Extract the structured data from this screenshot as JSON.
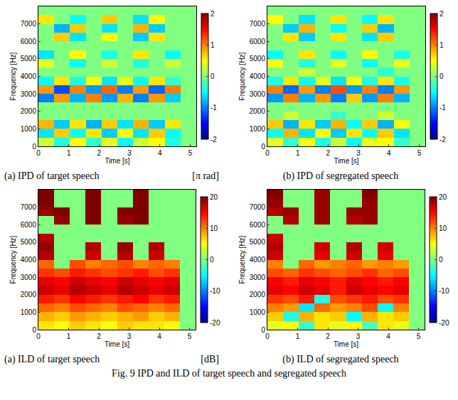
{
  "chart_data": [
    {
      "type": "heatmap",
      "caption": "(a) IPD of target speech",
      "units": "[π rad]",
      "xlabel": "Time [s]",
      "ylabel": "Frequency [Hz]",
      "x": [
        0.26,
        0.78,
        1.3,
        1.82,
        2.34,
        2.86,
        3.38,
        3.9,
        4.42,
        4.94
      ],
      "y": [
        250,
        750,
        1250,
        1750,
        2250,
        2750,
        3250,
        3750,
        4250,
        4750,
        5250,
        5750,
        6250,
        6750,
        7250,
        7750
      ],
      "z": [
        [
          0.3,
          -0.4,
          0.5,
          -0.3,
          0.4,
          -0.5,
          0.3,
          0.5,
          -0.4,
          0
        ],
        [
          -0.6,
          0.7,
          -0.5,
          0.6,
          -0.7,
          0.5,
          -0.6,
          0.7,
          -0.5,
          0
        ],
        [
          0.8,
          -0.7,
          0.6,
          -0.8,
          0.7,
          -0.6,
          0.8,
          -0.7,
          0.6,
          0
        ],
        [
          0,
          0,
          0,
          0,
          0,
          0,
          0,
          0,
          0,
          0
        ],
        [
          0,
          0,
          0,
          0,
          0,
          0,
          0,
          0,
          0,
          0
        ],
        [
          -1.0,
          0.9,
          -0.8,
          1.0,
          -0.9,
          0.8,
          -1.0,
          0.9,
          -0.7,
          0
        ],
        [
          0.9,
          -1.2,
          1.0,
          -0.9,
          1.1,
          -1.0,
          0.9,
          -1.1,
          1.0,
          0
        ],
        [
          -0.5,
          0.6,
          -0.4,
          0.5,
          -0.6,
          0.4,
          -0.5,
          0.6,
          -0.3,
          0
        ],
        [
          0,
          0,
          0,
          0,
          0,
          0,
          0,
          0,
          0,
          0
        ],
        [
          0.4,
          0,
          -0.5,
          0,
          0.3,
          0,
          -0.4,
          0,
          0.3,
          0
        ],
        [
          -0.6,
          0,
          0.5,
          0,
          -0.4,
          0,
          0.6,
          0,
          -0.5,
          0
        ],
        [
          0,
          0,
          0,
          0,
          0,
          0,
          0,
          0,
          0,
          0
        ],
        [
          0,
          0.7,
          -0.6,
          0,
          0.5,
          0,
          -0.7,
          0.6,
          0,
          0
        ],
        [
          0,
          -0.8,
          0.7,
          0,
          -0.6,
          0,
          0.8,
          -0.7,
          0,
          0
        ],
        [
          0.6,
          0,
          -0.5,
          0,
          0.7,
          0,
          -0.6,
          0.5,
          0,
          0
        ],
        [
          0,
          0,
          0,
          0,
          0,
          0,
          0,
          0,
          0,
          0
        ]
      ],
      "xlim": [
        0,
        5.2
      ],
      "ylim": [
        0,
        8000
      ],
      "xticks": [
        0,
        1,
        2,
        3,
        4,
        5
      ],
      "yticks": [
        0,
        1000,
        2000,
        3000,
        4000,
        5000,
        6000,
        7000
      ],
      "colorbar_range": [
        -2,
        2
      ],
      "colorbar_ticks": [
        -2,
        -1,
        0,
        1,
        2
      ]
    },
    {
      "type": "heatmap",
      "caption": "(b) IPD of segregated speech",
      "xlabel": "Time [s]",
      "ylabel": "Frequency [Hz]",
      "x": [
        0.26,
        0.78,
        1.3,
        1.82,
        2.34,
        2.86,
        3.38,
        3.9,
        4.42,
        4.94
      ],
      "y": [
        250,
        750,
        1250,
        1750,
        2250,
        2750,
        3250,
        3750,
        4250,
        4750,
        5250,
        5750,
        6250,
        6750,
        7250,
        7750
      ],
      "z": [
        [
          0.4,
          -0.3,
          0.5,
          -0.4,
          0.3,
          -0.5,
          0.4,
          0.5,
          -0.3,
          0
        ],
        [
          -0.5,
          0.8,
          -0.6,
          0.5,
          -0.7,
          0.6,
          -0.5,
          0.7,
          -0.6,
          0
        ],
        [
          0.7,
          -0.8,
          0.6,
          -0.7,
          0.8,
          -0.5,
          0.7,
          -0.8,
          0.5,
          0
        ],
        [
          0,
          0.3,
          0,
          0,
          -0.3,
          0,
          0,
          0.3,
          0,
          0
        ],
        [
          0,
          0,
          0,
          0,
          0,
          0,
          0,
          0,
          0,
          0
        ],
        [
          -0.9,
          1.0,
          -0.8,
          0.9,
          -1.0,
          0.7,
          -0.9,
          1.0,
          -0.8,
          0
        ],
        [
          1.0,
          -1.1,
          0.9,
          -1.0,
          1.2,
          -0.9,
          1.0,
          -1.0,
          0.9,
          0
        ],
        [
          -0.4,
          0.6,
          -0.5,
          0.4,
          -0.6,
          0.5,
          -0.4,
          0.6,
          -0.4,
          0
        ],
        [
          0,
          0,
          0.3,
          0,
          0,
          0,
          0,
          -0.3,
          0,
          0
        ],
        [
          0.5,
          0,
          -0.4,
          0,
          0.4,
          0,
          -0.5,
          0,
          0.4,
          0
        ],
        [
          -0.5,
          0,
          0.6,
          0,
          -0.5,
          0,
          0.5,
          0,
          -0.4,
          0
        ],
        [
          0,
          0,
          0,
          0,
          0,
          0,
          0,
          0,
          0,
          0
        ],
        [
          0,
          0.6,
          -0.7,
          0,
          0.6,
          0,
          -0.6,
          0.7,
          0,
          0
        ],
        [
          0,
          -0.7,
          0.8,
          0,
          -0.5,
          0,
          0.7,
          -0.8,
          0,
          0
        ],
        [
          0.5,
          0,
          -0.6,
          0,
          0.6,
          0,
          -0.5,
          0.6,
          0,
          0
        ],
        [
          0,
          0,
          0,
          0,
          0,
          0,
          0,
          0,
          0,
          0
        ]
      ],
      "xlim": [
        0,
        5.2
      ],
      "ylim": [
        0,
        8000
      ],
      "xticks": [
        0,
        1,
        2,
        3,
        4,
        5
      ],
      "yticks": [
        0,
        1000,
        2000,
        3000,
        4000,
        5000,
        6000,
        7000
      ],
      "colorbar_range": [
        -2,
        2
      ],
      "colorbar_ticks": [
        -2,
        -1,
        0,
        1,
        2
      ]
    },
    {
      "type": "heatmap",
      "caption": "(a) ILD of target speech",
      "units": "[dB]",
      "xlabel": "Time [s]",
      "ylabel": "Frequency [Hz]",
      "x": [
        0.26,
        0.78,
        1.3,
        1.82,
        2.34,
        2.86,
        3.38,
        3.9,
        4.42,
        4.94
      ],
      "y": [
        250,
        750,
        1250,
        1750,
        2250,
        2750,
        3250,
        3750,
        4250,
        4750,
        5250,
        5750,
        6250,
        6750,
        7250,
        7750
      ],
      "z": [
        [
          6,
          5,
          7,
          6,
          5,
          7,
          6,
          6,
          5,
          0
        ],
        [
          8,
          7,
          9,
          8,
          7,
          8,
          9,
          7,
          8,
          0
        ],
        [
          11,
          10,
          12,
          11,
          10,
          12,
          11,
          10,
          11,
          0
        ],
        [
          14,
          13,
          15,
          14,
          13,
          14,
          15,
          13,
          14,
          0
        ],
        [
          17,
          16,
          18,
          17,
          16,
          18,
          17,
          16,
          17,
          0
        ],
        [
          16,
          15,
          17,
          16,
          15,
          17,
          16,
          15,
          16,
          0
        ],
        [
          13,
          12,
          14,
          13,
          12,
          13,
          14,
          12,
          13,
          0
        ],
        [
          11,
          0,
          12,
          10,
          11,
          12,
          10,
          11,
          10,
          0
        ],
        [
          18,
          0,
          0,
          17,
          0,
          18,
          0,
          17,
          0,
          0
        ],
        [
          19,
          0,
          0,
          18,
          0,
          19,
          0,
          18,
          0,
          0
        ],
        [
          18,
          0,
          0,
          0,
          0,
          0,
          0,
          0,
          0,
          0
        ],
        [
          0,
          0,
          0,
          0,
          0,
          0,
          0,
          0,
          0,
          0
        ],
        [
          0,
          19,
          0,
          20,
          0,
          19,
          20,
          0,
          0,
          0
        ],
        [
          19,
          20,
          0,
          20,
          0,
          20,
          20,
          0,
          0,
          0
        ],
        [
          20,
          0,
          0,
          20,
          0,
          0,
          20,
          0,
          0,
          0
        ],
        [
          20,
          0,
          0,
          20,
          0,
          0,
          20,
          0,
          0,
          0
        ]
      ],
      "xlim": [
        0,
        5.2
      ],
      "ylim": [
        0,
        8000
      ],
      "xticks": [
        0,
        1,
        2,
        3,
        4,
        5
      ],
      "yticks": [
        0,
        1000,
        2000,
        3000,
        4000,
        5000,
        6000,
        7000
      ],
      "colorbar_range": [
        -20,
        20
      ],
      "colorbar_ticks": [
        -20,
        -10,
        0,
        10,
        20
      ]
    },
    {
      "type": "heatmap",
      "caption": "(b) ILD of segregated speech",
      "xlabel": "Time [s]",
      "ylabel": "Frequency [Hz]",
      "x": [
        0.26,
        0.78,
        1.3,
        1.82,
        2.34,
        2.86,
        3.38,
        3.9,
        4.42,
        4.94
      ],
      "y": [
        250,
        750,
        1250,
        1750,
        2250,
        2750,
        3250,
        3750,
        4250,
        4750,
        5250,
        5750,
        6250,
        6750,
        7250,
        7750
      ],
      "z": [
        [
          4,
          5,
          -3,
          6,
          4,
          5,
          -2,
          6,
          4,
          0
        ],
        [
          7,
          -4,
          8,
          6,
          7,
          -5,
          8,
          6,
          7,
          0
        ],
        [
          10,
          9,
          -6,
          11,
          9,
          10,
          12,
          -5,
          10,
          0
        ],
        [
          13,
          12,
          14,
          -4,
          12,
          13,
          14,
          12,
          13,
          0
        ],
        [
          16,
          15,
          17,
          16,
          14,
          17,
          16,
          15,
          16,
          0
        ],
        [
          15,
          14,
          16,
          15,
          14,
          16,
          15,
          14,
          15,
          0
        ],
        [
          12,
          11,
          13,
          12,
          11,
          12,
          13,
          11,
          12,
          0
        ],
        [
          10,
          0,
          11,
          9,
          10,
          11,
          9,
          10,
          9,
          0
        ],
        [
          17,
          0,
          0,
          16,
          0,
          17,
          0,
          16,
          0,
          0
        ],
        [
          18,
          0,
          0,
          17,
          0,
          18,
          0,
          17,
          0,
          0
        ],
        [
          17,
          0,
          0,
          0,
          0,
          0,
          0,
          0,
          0,
          0
        ],
        [
          0,
          0,
          0,
          0,
          0,
          0,
          0,
          0,
          0,
          0
        ],
        [
          0,
          18,
          0,
          19,
          0,
          18,
          19,
          0,
          0,
          0
        ],
        [
          18,
          19,
          0,
          19,
          0,
          19,
          19,
          0,
          0,
          0
        ],
        [
          19,
          0,
          0,
          19,
          0,
          0,
          19,
          0,
          0,
          0
        ],
        [
          20,
          0,
          0,
          19,
          0,
          0,
          20,
          0,
          0,
          0
        ]
      ],
      "xlim": [
        0,
        5.2
      ],
      "ylim": [
        0,
        8000
      ],
      "xticks": [
        0,
        1,
        2,
        3,
        4,
        5
      ],
      "yticks": [
        0,
        1000,
        2000,
        3000,
        4000,
        5000,
        6000,
        7000
      ],
      "colorbar_range": [
        -20,
        20
      ],
      "colorbar_ticks": [
        -20,
        -10,
        0,
        10,
        20
      ]
    }
  ],
  "figure_caption": "Fig. 9 IPD and ILD of target speech and segregated speech"
}
